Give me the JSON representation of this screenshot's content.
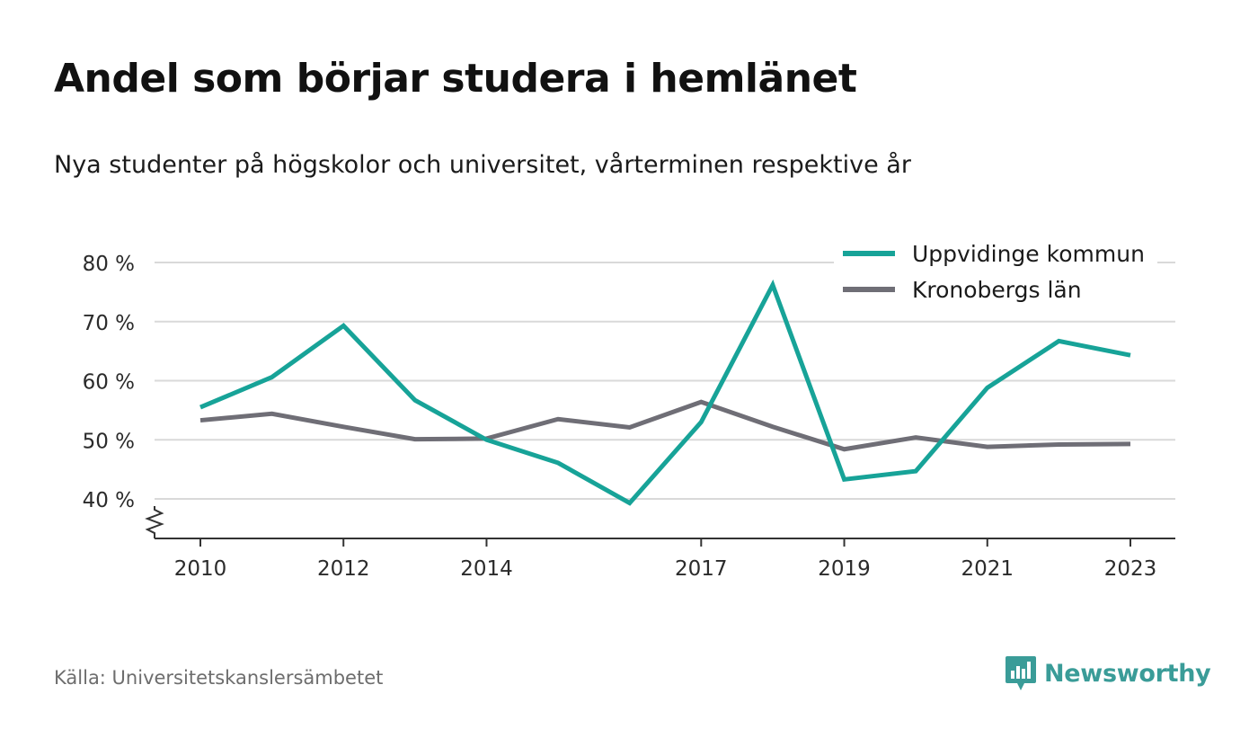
{
  "title": "Andel som börjar studera i hemlänet",
  "subtitle": "Nya studenter på högskolor och universitet, vårterminen respektive år",
  "source": "Källa: Universitetskanslersämbetet",
  "brand": {
    "name": "Newsworthy",
    "icon": "newsworthy-logo-icon",
    "color": "#3a9c98"
  },
  "chart_data": {
    "type": "line",
    "title": "Andel som börjar studera i hemlänet",
    "xlabel": "",
    "ylabel": "",
    "x": [
      2010,
      2011,
      2012,
      2013,
      2014,
      2015,
      2016,
      2017,
      2018,
      2019,
      2020,
      2021,
      2022,
      2023
    ],
    "x_tick_labels": [
      "2010",
      "2012",
      "2014",
      "2017",
      "2019",
      "2021",
      "2023"
    ],
    "y_ticks": [
      40,
      50,
      60,
      70,
      80
    ],
    "y_tick_labels": [
      "40 %",
      "50 %",
      "60 %",
      "70 %",
      "80 %"
    ],
    "ylim": [
      33.3,
      80
    ],
    "y_axis_break": true,
    "grid": true,
    "legend_position": "top-right",
    "series": [
      {
        "name": "Uppvidinge kommun",
        "color": "#17a398",
        "values": [
          55.5,
          60.6,
          69.3,
          56.7,
          50.0,
          46.1,
          39.3,
          53.0,
          76.2,
          43.3,
          44.7,
          58.8,
          66.7,
          64.3
        ]
      },
      {
        "name": "Kronobergs län",
        "color": "#6f6e76",
        "values": [
          53.3,
          54.4,
          52.2,
          50.1,
          50.2,
          53.5,
          52.1,
          56.4,
          52.2,
          48.4,
          50.4,
          48.8,
          49.2,
          49.3
        ]
      }
    ]
  }
}
